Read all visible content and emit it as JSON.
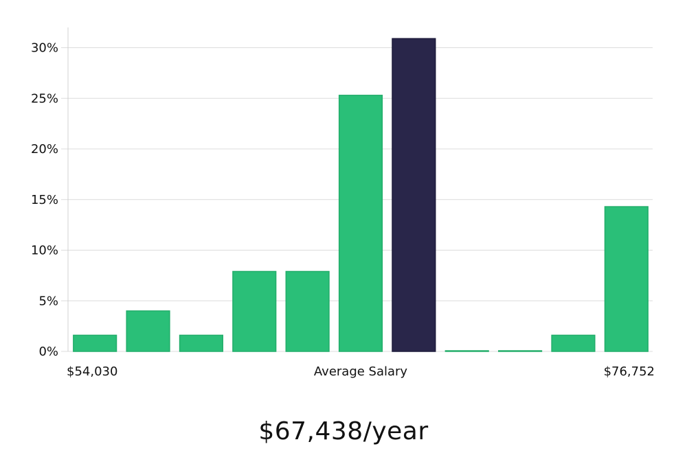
{
  "chart_data": {
    "type": "bar",
    "categories": [
      "",
      "",
      "",
      "",
      "",
      "",
      "",
      "",
      "",
      "",
      ""
    ],
    "values": [
      1.6,
      4.0,
      1.6,
      7.9,
      7.9,
      25.3,
      30.9,
      0,
      0,
      1.6,
      14.3
    ],
    "highlight_index": 6,
    "ylim": [
      0,
      32
    ],
    "yticks": [
      0,
      5,
      10,
      15,
      20,
      25,
      30
    ],
    "ytick_suffix": "%",
    "grid": true,
    "colors": {
      "bar": "#2abf78",
      "bar_border": "#22ad6a",
      "highlight": "#29264a",
      "highlight_border": "#1c1a3a",
      "grid": "#dcdcdc",
      "axis": "#d0d0d0"
    },
    "x_labels": {
      "left": "$54,030",
      "center": "Average Salary",
      "right": "$76,752"
    }
  },
  "summary": {
    "salary": "$67,438/year"
  }
}
